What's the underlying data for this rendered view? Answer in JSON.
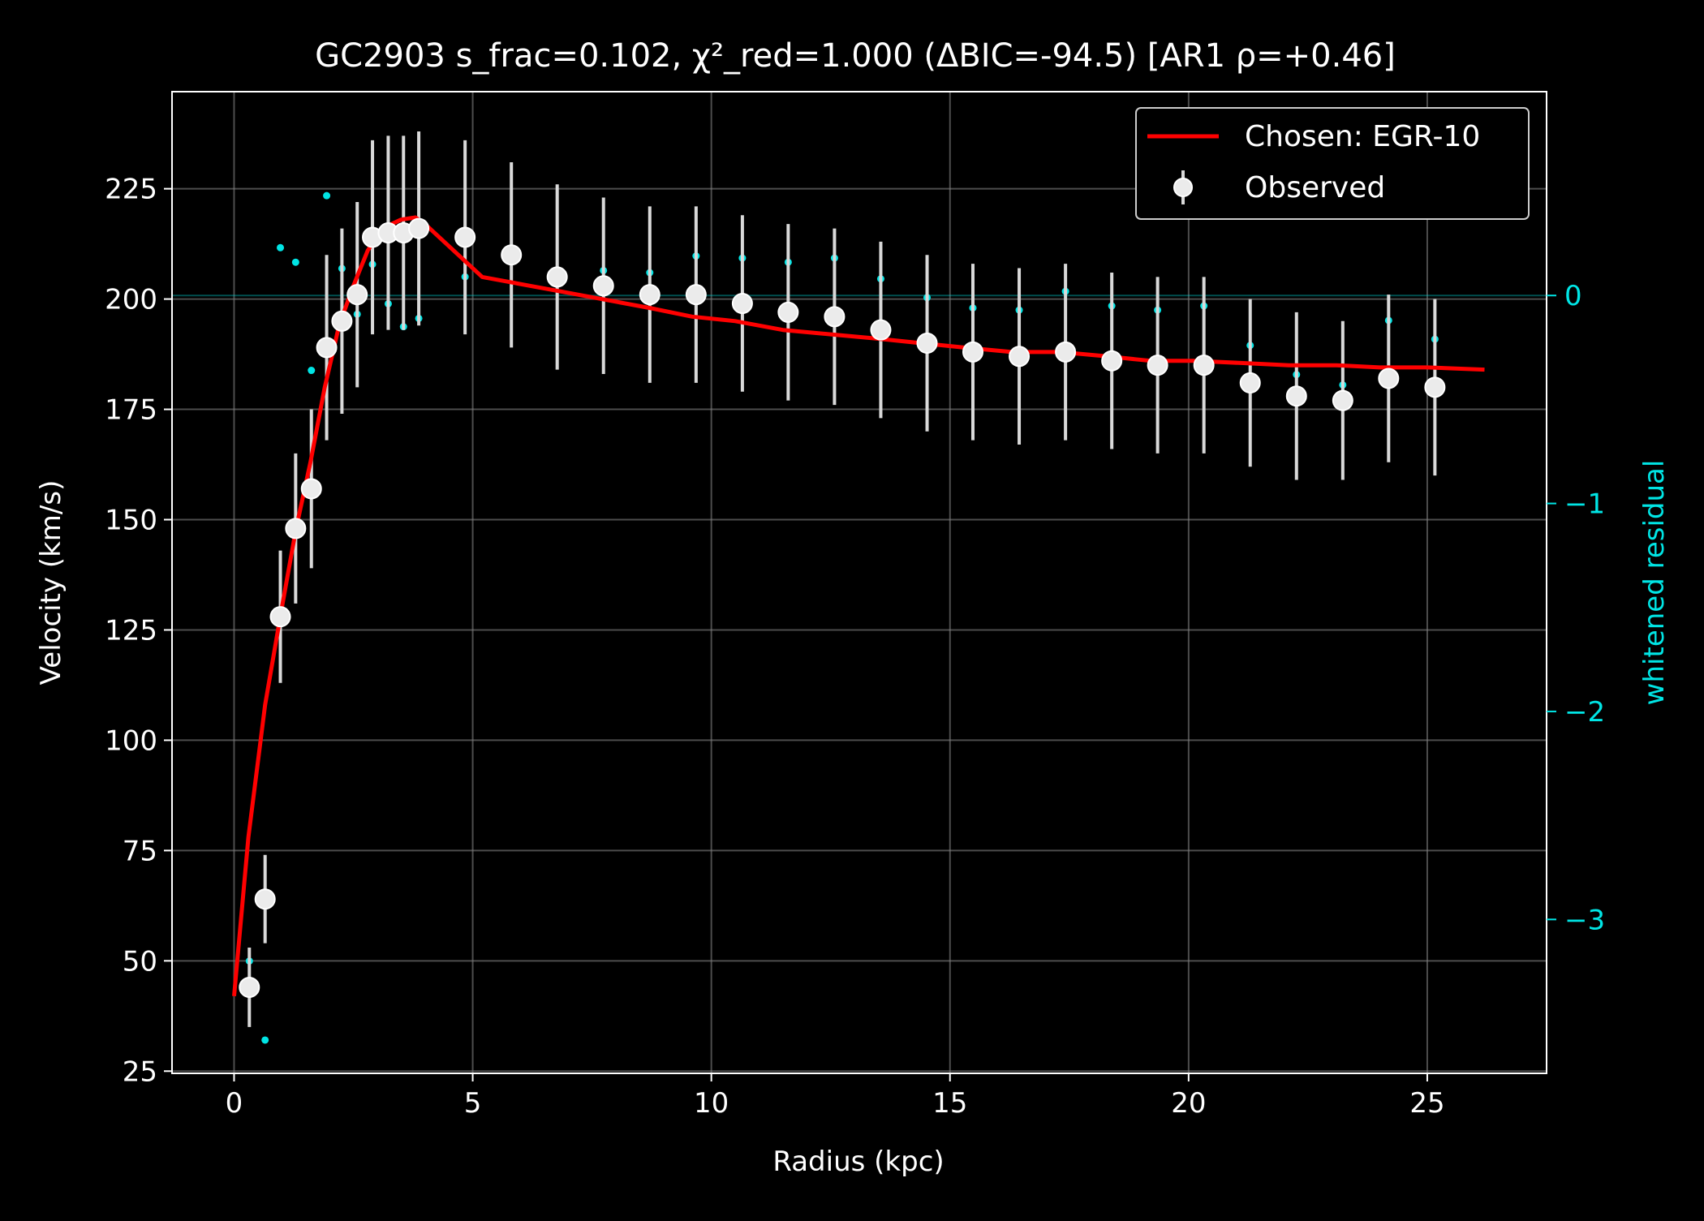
{
  "chart_data": {
    "type": "line",
    "title": "GC2903  s_frac=0.102, χ²_red=1.000  (ΔBIC=-94.5) [AR1 ρ=+0.46]",
    "xlabel": "Radius (kpc)",
    "ylabel": "Velocity (km/s)",
    "y2label": "whitened residual",
    "xlim": [
      -1.3,
      27.5
    ],
    "ylim": [
      24.5,
      247
    ],
    "y2lim": [
      -3.74,
      0.98
    ],
    "xticks": [
      "0",
      "5",
      "10",
      "15",
      "20",
      "25"
    ],
    "xtick_values": [
      0,
      5,
      10,
      15,
      20,
      25
    ],
    "yticks": [
      "25",
      "50",
      "75",
      "100",
      "125",
      "150",
      "175",
      "200",
      "225"
    ],
    "ytick_values": [
      25,
      50,
      75,
      100,
      125,
      150,
      175,
      200,
      225
    ],
    "y2ticks": [
      "0",
      "−1",
      "−2",
      "−3"
    ],
    "y2tick_values": [
      0,
      -1,
      -2,
      -3
    ],
    "grid": true,
    "legend_position": "top-right",
    "colors": {
      "background": "#000000",
      "axes": "#ffffff",
      "text": "#ffffff",
      "model": "#ff0000",
      "observed": "#ffffff",
      "errorbar": "#d9d9d9",
      "residual": "#00e5e5",
      "grid": "#808080"
    },
    "series": [
      {
        "name": "Chosen: EGR-10",
        "kind": "line",
        "x": [
          0,
          0.3,
          0.65,
          1.0,
          1.3,
          1.6,
          1.9,
          2.2,
          2.5,
          2.8,
          3.1,
          3.5,
          3.8,
          4.0,
          4.4,
          4.8,
          5.2,
          5.7,
          6.2,
          6.7,
          7.7,
          8.7,
          9.6,
          10.5,
          11.5,
          12.5,
          13.5,
          14.4,
          15.3,
          16.3,
          17.3,
          18.3,
          19.2,
          20.1,
          21.1,
          22.1,
          23.1,
          24.0,
          25.0,
          26.2
        ],
        "y": [
          42,
          78,
          108,
          130,
          148,
          163,
          180,
          194,
          203,
          211,
          216,
          218,
          218.5,
          217,
          213,
          209,
          205,
          204,
          203,
          202,
          200,
          198,
          196,
          195,
          193,
          192,
          191,
          190,
          189,
          188,
          188,
          187,
          186,
          186,
          185.5,
          185,
          185,
          184.5,
          184.5,
          184
        ]
      },
      {
        "name": "Observed",
        "kind": "errorbar",
        "x": [
          0.32,
          0.65,
          0.97,
          1.29,
          1.62,
          1.94,
          2.26,
          2.58,
          2.9,
          3.23,
          3.55,
          3.87,
          4.84,
          5.81,
          6.77,
          7.74,
          8.71,
          9.68,
          10.65,
          11.61,
          12.58,
          13.55,
          14.52,
          15.48,
          16.45,
          17.42,
          18.39,
          19.35,
          20.32,
          21.29,
          22.26,
          23.23,
          24.19,
          25.16
        ],
        "y": [
          44,
          64,
          128,
          148,
          157,
          189,
          195,
          201,
          214,
          215,
          215,
          216,
          214,
          210,
          205,
          203,
          201,
          201,
          199,
          197,
          196,
          193,
          190,
          188,
          187,
          188,
          186,
          185,
          185,
          181,
          178,
          177,
          182,
          180
        ],
        "err": [
          9,
          10,
          15,
          17,
          18,
          21,
          21,
          21,
          22,
          22,
          22,
          22,
          22,
          21,
          21,
          20,
          20,
          20,
          20,
          20,
          20,
          20,
          20,
          20,
          20,
          20,
          20,
          20,
          20,
          19,
          19,
          18,
          19,
          20
        ]
      },
      {
        "name": "whitened residual",
        "kind": "scatter",
        "axis": "right",
        "x": [
          0.32,
          0.65,
          0.97,
          1.29,
          1.62,
          1.94,
          2.26,
          2.58,
          2.9,
          3.23,
          3.55,
          3.87,
          4.84,
          5.81,
          6.77,
          7.74,
          8.71,
          9.68,
          10.65,
          11.61,
          12.58,
          13.55,
          14.52,
          15.48,
          16.45,
          17.42,
          18.39,
          19.35,
          20.32,
          21.29,
          22.26,
          23.23,
          24.19,
          25.16
        ],
        "y": [
          -3.2,
          -3.58,
          0.23,
          0.16,
          -0.36,
          0.48,
          0.13,
          -0.09,
          0.15,
          -0.04,
          -0.15,
          -0.11,
          0.09,
          0.21,
          0.12,
          0.12,
          0.11,
          0.19,
          0.18,
          0.16,
          0.18,
          0.08,
          -0.01,
          -0.06,
          -0.07,
          0.02,
          -0.05,
          -0.07,
          -0.05,
          -0.24,
          -0.38,
          -0.43,
          -0.12,
          -0.21
        ]
      }
    ]
  }
}
